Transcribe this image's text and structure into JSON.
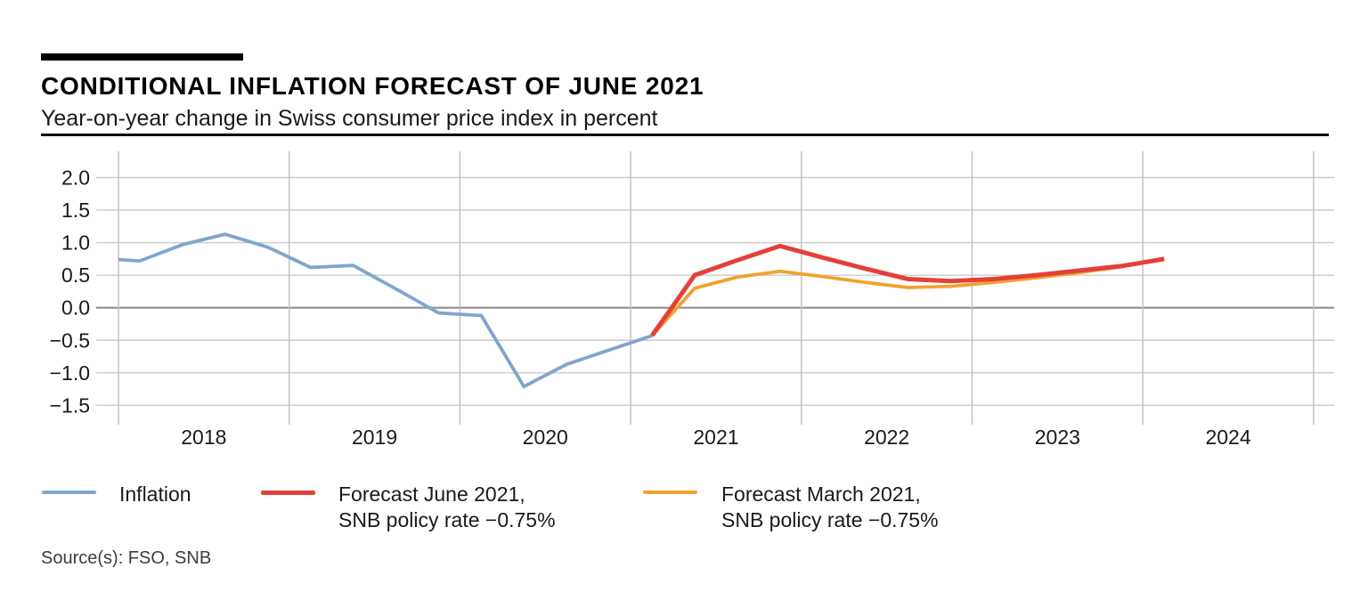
{
  "header": {
    "title": "CONDITIONAL INFLATION FORECAST OF JUNE 2021",
    "subtitle": "Year-on-year change in Swiss consumer price index in percent"
  },
  "source": "Source(s): FSO, SNB",
  "colors": {
    "inflation_line": "#7ea6ce",
    "forecast_june_line": "#e3403a",
    "forecast_march_line": "#f0a22e",
    "gridline": "#cbcbcb",
    "gridline_vertical": "#c0c0c0",
    "zero_line": "#8f8f8f",
    "text": "#1a1a1a"
  },
  "legend": {
    "items": [
      {
        "name": "inflation",
        "color": "#7ea6ce",
        "thickness": 4,
        "lines": [
          "Inflation"
        ]
      },
      {
        "name": "forecast-june-2021",
        "color": "#e3403a",
        "thickness": 5,
        "lines": [
          "Forecast June 2021,",
          "SNB policy rate −0.75%"
        ]
      },
      {
        "name": "forecast-march-2021",
        "color": "#f0a22e",
        "thickness": 4,
        "lines": [
          "Forecast March 2021,",
          "SNB policy rate −0.75%"
        ]
      }
    ]
  },
  "chart_data": {
    "type": "line",
    "title": "CONDITIONAL INFLATION FORECAST OF JUNE 2021",
    "subtitle": "Year-on-year change in Swiss consumer price index in percent",
    "unit": "percent (year-on-year change in Swiss CPI)",
    "x_axis": {
      "kind": "time (decimal years, quarterly points at quarter midpoints)",
      "range": [
        2018,
        2025
      ],
      "gridline_years": [
        2018,
        2019,
        2020,
        2021,
        2022,
        2023,
        2024,
        2025
      ],
      "tick_labels": [
        "2018",
        "2019",
        "2020",
        "2021",
        "2022",
        "2023",
        "2024"
      ]
    },
    "y_axis": {
      "range": [
        -1.5,
        2.0
      ],
      "tick_values": [
        2.0,
        1.5,
        1.0,
        0.5,
        0.0,
        -0.5,
        -1.0,
        -1.5
      ],
      "tick_labels": [
        "2.0",
        "1.5",
        "1.0",
        "0.5",
        "0.0",
        "−0.5",
        "−1.0",
        "−1.5"
      ],
      "grid": true,
      "zero_line_emphasized": true
    },
    "legend_position": "bottom",
    "series": [
      {
        "name": "Inflation",
        "color": "#7ea6ce",
        "stroke_width": 3.8,
        "points": [
          [
            2018.0,
            0.74
          ],
          [
            2018.125,
            0.72
          ],
          [
            2018.375,
            0.97
          ],
          [
            2018.625,
            1.13
          ],
          [
            2018.875,
            0.93
          ],
          [
            2019.125,
            0.62
          ],
          [
            2019.375,
            0.65
          ],
          [
            2019.625,
            0.29
          ],
          [
            2019.875,
            -0.08
          ],
          [
            2020.125,
            -0.12
          ],
          [
            2020.375,
            -1.21
          ],
          [
            2020.625,
            -0.87
          ],
          [
            2020.875,
            -0.65
          ],
          [
            2021.125,
            -0.43
          ]
        ]
      },
      {
        "name": "Forecast March 2021, SNB policy rate −0.75%",
        "color": "#f0a22e",
        "stroke_width": 3.8,
        "points": [
          [
            2021.125,
            -0.43
          ],
          [
            2021.375,
            0.3
          ],
          [
            2021.625,
            0.47
          ],
          [
            2021.875,
            0.56
          ],
          [
            2022.125,
            0.48
          ],
          [
            2022.375,
            0.39
          ],
          [
            2022.625,
            0.31
          ],
          [
            2022.875,
            0.33
          ],
          [
            2023.125,
            0.39
          ],
          [
            2023.375,
            0.46
          ],
          [
            2023.625,
            0.54
          ],
          [
            2023.875,
            0.63
          ]
        ]
      },
      {
        "name": "Forecast June 2021, SNB policy rate −0.75%",
        "color": "#e3403a",
        "stroke_width": 5,
        "points": [
          [
            2021.125,
            -0.43
          ],
          [
            2021.375,
            0.5
          ],
          [
            2021.625,
            0.73
          ],
          [
            2021.875,
            0.95
          ],
          [
            2022.125,
            0.77
          ],
          [
            2022.375,
            0.6
          ],
          [
            2022.625,
            0.44
          ],
          [
            2022.875,
            0.41
          ],
          [
            2023.125,
            0.44
          ],
          [
            2023.375,
            0.5
          ],
          [
            2023.625,
            0.57
          ],
          [
            2023.875,
            0.64
          ],
          [
            2024.125,
            0.75
          ]
        ]
      }
    ]
  }
}
